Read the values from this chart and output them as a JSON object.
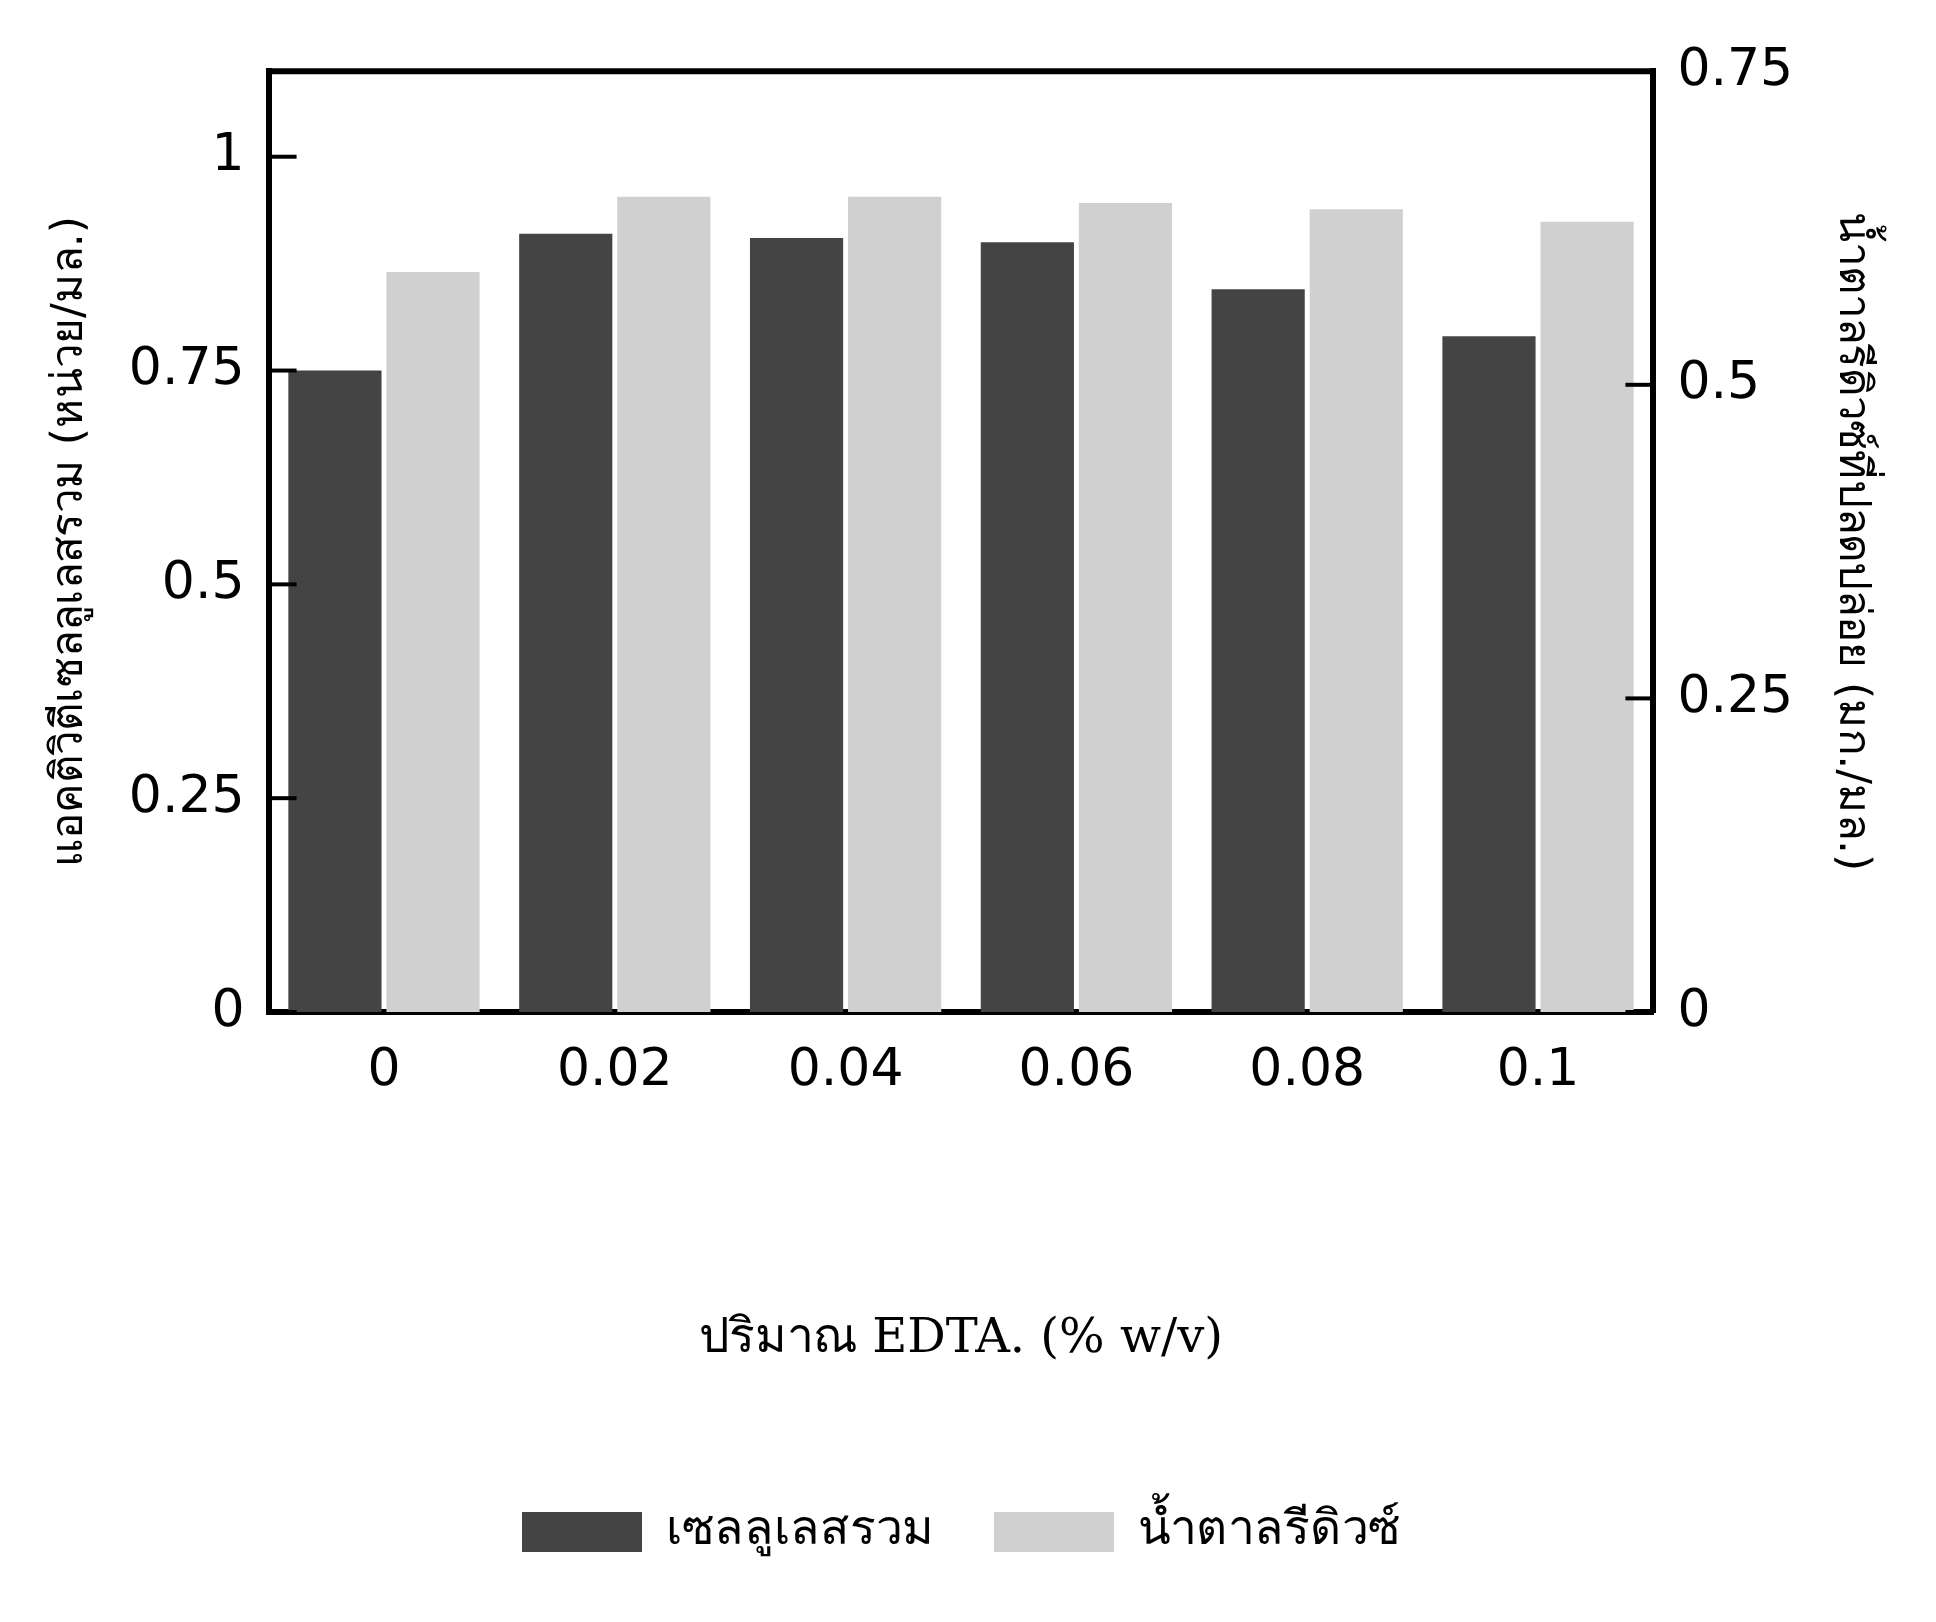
{
  "chart_data": {
    "type": "bar",
    "xlabel": "ปริมาณ EDTA. (% w/v)",
    "ylabel": "แอคติวิตีเซลลูเลสรวม (หน่วย/มล.)",
    "y2label": "น้ำตาลรีดิวซ์ที่ปลดปล่อย (มก./มล.)",
    "categories": [
      "0",
      "0.02",
      "0.04",
      "0.06",
      "0.08",
      "0.1"
    ],
    "series": [
      {
        "name": "เซลลูเลสรวม",
        "color": "#444444",
        "values": [
          0.75,
          0.91,
          0.905,
          0.9,
          0.845,
          0.79
        ]
      },
      {
        "name": "น้ำตาลรีดิวซ์",
        "color": "#d0d0d0",
        "axis": "y2",
        "values": [
          0.59,
          0.65,
          0.65,
          0.645,
          0.64,
          0.63
        ]
      }
    ],
    "ylim": [
      0,
      1.1
    ],
    "yticks": [
      0,
      0.25,
      0.5,
      0.75,
      1
    ],
    "y2lim": [
      0,
      0.75
    ],
    "y2ticks": [
      0,
      0.25,
      0.5,
      0.75
    ],
    "grid": false,
    "legend": "bottom"
  }
}
